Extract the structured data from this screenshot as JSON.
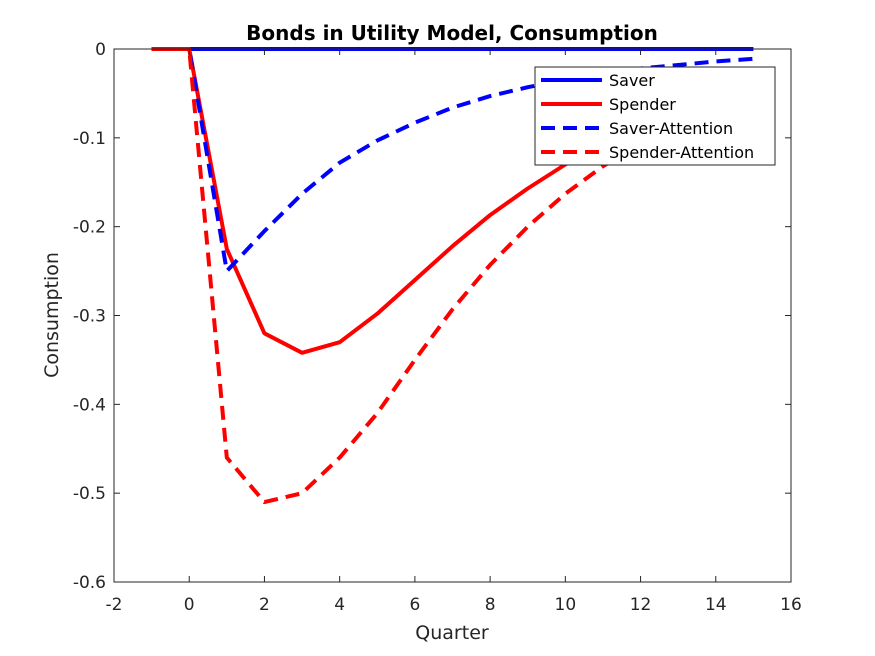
{
  "chart_data": {
    "type": "line",
    "title": "Bonds in Utility Model, Consumption",
    "xlabel": "Quarter",
    "ylabel": "Consumption",
    "xlim": [
      -2,
      16
    ],
    "ylim": [
      -0.6,
      0
    ],
    "xticks": [
      "-2",
      "0",
      "2",
      "4",
      "6",
      "8",
      "10",
      "12",
      "14",
      "16"
    ],
    "yticks": [
      "0",
      "-0.1",
      "-0.2",
      "-0.3",
      "-0.4",
      "-0.5",
      "-0.6"
    ],
    "grid": false,
    "legend_position": "top-right",
    "series": [
      {
        "name": "Saver",
        "color": "#0000ff",
        "style": "solid",
        "x": [
          -1,
          0,
          1,
          2,
          3,
          4,
          5,
          6,
          7,
          8,
          9,
          10,
          11,
          12,
          13,
          14,
          15
        ],
        "y": [
          0,
          0,
          0,
          0,
          0,
          0,
          0,
          0,
          0,
          0,
          0,
          0,
          0,
          0,
          0,
          0,
          0
        ]
      },
      {
        "name": "Spender",
        "color": "#ff0000",
        "style": "solid",
        "x": [
          -1,
          0,
          1,
          2,
          3,
          4,
          5,
          6,
          7,
          8,
          9,
          10,
          11,
          12,
          13,
          14,
          15
        ],
        "y": [
          0,
          0,
          -0.225,
          -0.32,
          -0.342,
          -0.33,
          -0.298,
          -0.26,
          -0.222,
          -0.187,
          -0.157,
          -0.13,
          -0.107,
          -0.087,
          -0.07,
          -0.056,
          -0.044
        ]
      },
      {
        "name": "Saver-Attention",
        "color": "#0000ff",
        "style": "dashed",
        "x": [
          -1,
          0,
          1,
          2,
          3,
          4,
          5,
          6,
          7,
          8,
          9,
          10,
          11,
          12,
          13,
          14,
          15
        ],
        "y": [
          0,
          0,
          -0.25,
          -0.205,
          -0.163,
          -0.128,
          -0.103,
          -0.083,
          -0.066,
          -0.053,
          -0.043,
          -0.035,
          -0.028,
          -0.022,
          -0.018,
          -0.014,
          -0.011
        ]
      },
      {
        "name": "Spender-Attention",
        "color": "#ff0000",
        "style": "dashed",
        "x": [
          -1,
          0,
          1,
          2,
          3,
          4,
          5,
          6,
          7,
          8,
          9,
          10,
          11,
          12,
          13,
          14,
          15
        ],
        "y": [
          0,
          0,
          -0.46,
          -0.51,
          -0.5,
          -0.46,
          -0.41,
          -0.35,
          -0.293,
          -0.243,
          -0.2,
          -0.163,
          -0.132,
          -0.106,
          -0.085,
          -0.068,
          -0.054
        ]
      }
    ]
  }
}
